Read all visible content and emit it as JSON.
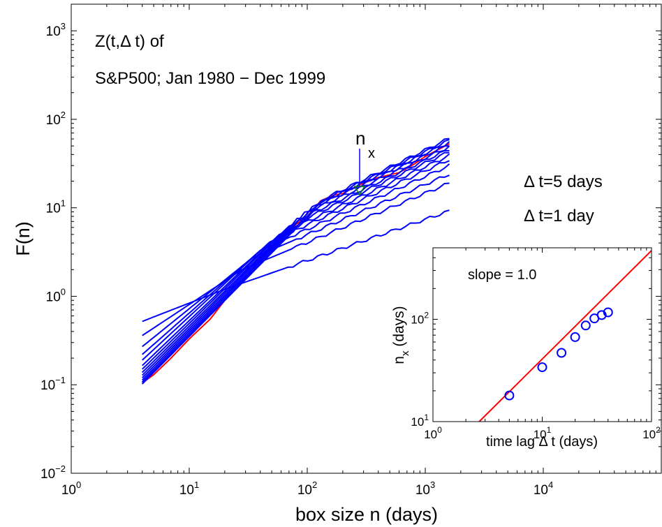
{
  "chart_data": [
    {
      "type": "line",
      "xscale": "log",
      "yscale": "log",
      "xlim": [
        1,
        100000
      ],
      "ylim": [
        0.01,
        2000
      ],
      "xlabel": "box size n (days)",
      "ylabel": "F(n)",
      "x_ticks": [
        {
          "value": 1,
          "base": "10",
          "exp": "0"
        },
        {
          "value": 10,
          "base": "10",
          "exp": "1"
        },
        {
          "value": 100,
          "base": "10",
          "exp": "2"
        },
        {
          "value": 1000,
          "base": "10",
          "exp": "3"
        },
        {
          "value": 10000,
          "base": "10",
          "exp": "4"
        }
      ],
      "y_ticks": [
        {
          "value": 0.01,
          "base": "10",
          "exp": "−2"
        },
        {
          "value": 0.1,
          "base": "10",
          "exp": "−1"
        },
        {
          "value": 1,
          "base": "10",
          "exp": "0"
        },
        {
          "value": 10,
          "base": "10",
          "exp": "1"
        },
        {
          "value": 100,
          "base": "10",
          "exp": "2"
        },
        {
          "value": 1000,
          "base": "10",
          "exp": "3"
        }
      ],
      "annotations": {
        "title_line1": "Z(t,Δ t) of",
        "title_line2": "S&P500; Jan 1980 − Dec 1999",
        "nx_base": "n",
        "nx_sub": "x",
        "nx_position": 130,
        "label_dt5": "Δ t=5 days",
        "label_dt1": "Δ t=1 day"
      },
      "colors": {
        "blue": "#0000ff",
        "red": "#ff0000",
        "marker": "#008000"
      },
      "series": [
        {
          "color": "#0000ff",
          "x": [
            4,
            20,
            1600
          ],
          "y": [
            0.52,
            1.2,
            9.2
          ]
        },
        {
          "color": "#0000ff",
          "x": [
            4,
            28,
            1600
          ],
          "y": [
            0.36,
            2.0,
            19
          ]
        },
        {
          "color": "#0000ff",
          "x": [
            4,
            34,
            1600
          ],
          "y": [
            0.27,
            2.7,
            24
          ]
        },
        {
          "color": "#0000ff",
          "x": [
            4,
            40,
            1600
          ],
          "y": [
            0.22,
            3.3,
            30
          ]
        },
        {
          "color": "#0000ff",
          "x": [
            4,
            48,
            1600
          ],
          "y": [
            0.19,
            4.1,
            35
          ]
        },
        {
          "color": "#0000ff",
          "x": [
            4,
            58,
            1600
          ],
          "y": [
            0.165,
            5.0,
            39
          ]
        },
        {
          "color": "#0000ff",
          "x": [
            4,
            70,
            1600
          ],
          "y": [
            0.15,
            6.2,
            43
          ]
        },
        {
          "color": "#0000ff",
          "x": [
            4,
            82,
            1600
          ],
          "y": [
            0.138,
            7.3,
            46
          ]
        },
        {
          "color": "#0000ff",
          "x": [
            4,
            95,
            1600
          ],
          "y": [
            0.128,
            8.6,
            49
          ]
        },
        {
          "color": "#0000ff",
          "x": [
            4,
            110,
            1600
          ],
          "y": [
            0.12,
            10,
            52
          ]
        },
        {
          "color": "#0000ff",
          "x": [
            4,
            122,
            1600
          ],
          "y": [
            0.113,
            11,
            55
          ]
        },
        {
          "color": "#0000ff",
          "x": [
            4,
            135,
            1600
          ],
          "y": [
            0.107,
            12,
            58
          ]
        },
        {
          "color": "#0000ff",
          "x": [
            4,
            145,
            1600
          ],
          "y": [
            0.102,
            13,
            61
          ]
        },
        {
          "color": "#ff0000",
          "x": [
            4,
            5,
            7,
            10,
            15,
            20,
            30,
            40,
            60,
            80,
            100,
            130,
            170,
            200,
            250,
            300,
            400,
            600,
            800,
            1000,
            1600
          ],
          "y": [
            0.105,
            0.13,
            0.2,
            0.33,
            0.55,
            0.9,
            1.6,
            2.6,
            4.5,
            6.5,
            8.0,
            12,
            14,
            14.5,
            17,
            19,
            22,
            25,
            31,
            38,
            53
          ]
        }
      ]
    },
    {
      "type": "scatter",
      "xscale": "log",
      "yscale": "log",
      "xlim": [
        1,
        100
      ],
      "ylim": [
        10,
        500
      ],
      "xlabel": "time lag Δ t (days)",
      "ylabel_base": "n",
      "ylabel_sub": "x",
      "ylabel_rest": " (days)",
      "annotation": "slope = 1.0",
      "x_ticks": [
        {
          "value": 1,
          "base": "10",
          "exp": "0"
        },
        {
          "value": 10,
          "base": "10",
          "exp": "1"
        },
        {
          "value": 100,
          "base": "10",
          "exp": "2"
        }
      ],
      "y_ticks": [
        {
          "value": 10,
          "base": "10",
          "exp": "1"
        },
        {
          "value": 100,
          "base": "10",
          "exp": "2"
        }
      ],
      "points": {
        "x": [
          5,
          10,
          15,
          20,
          25,
          30,
          35,
          40
        ],
        "y": [
          18,
          34,
          47,
          67,
          87,
          102,
          110,
          117
        ],
        "color": "#0000ff"
      },
      "fit": {
        "x": [
          2.65,
          100
        ],
        "y": [
          10,
          470
        ],
        "slope": 1.0,
        "color": "#ff0000"
      }
    }
  ]
}
